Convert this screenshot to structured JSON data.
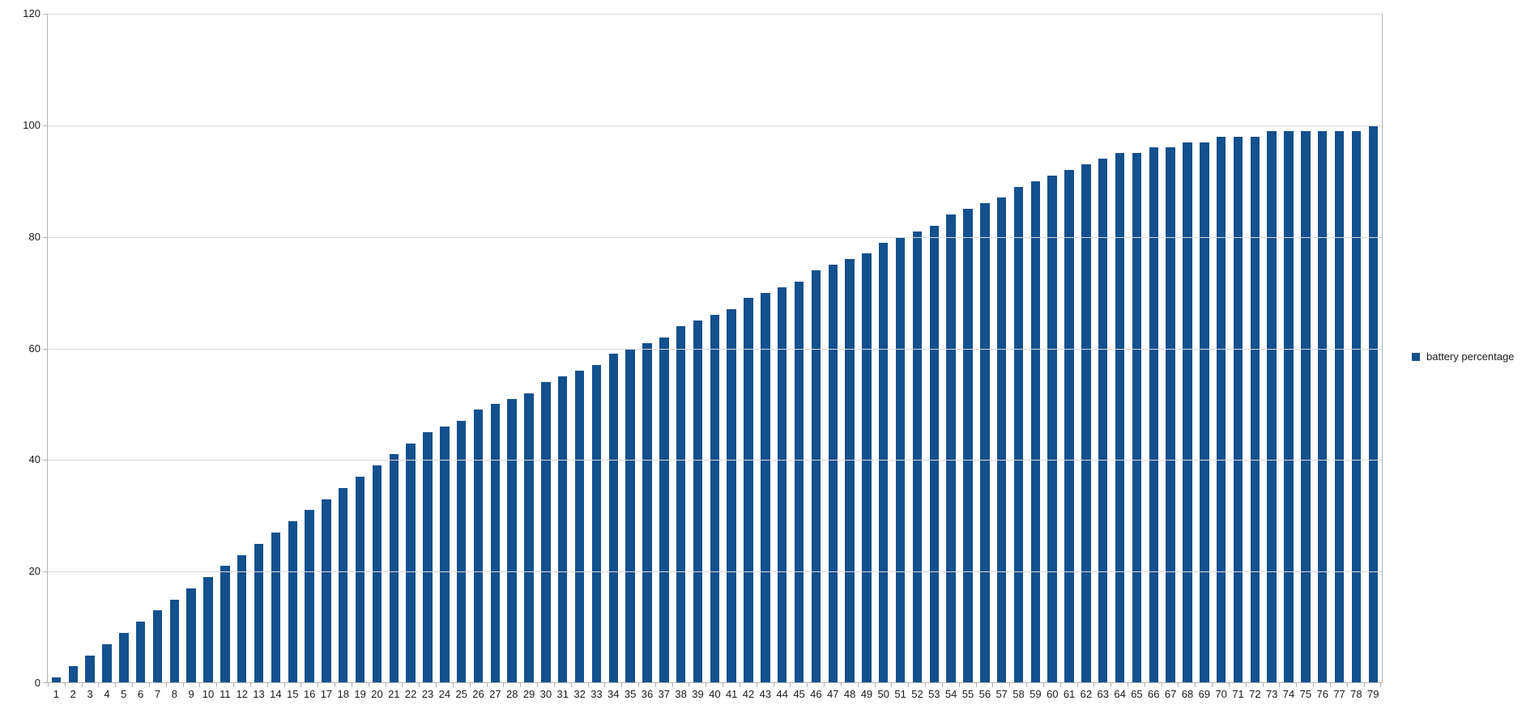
{
  "chart_data": {
    "type": "bar",
    "title": "",
    "xlabel": "",
    "ylabel": "",
    "categories": [
      "1",
      "2",
      "3",
      "4",
      "5",
      "6",
      "7",
      "8",
      "9",
      "10",
      "11",
      "12",
      "13",
      "14",
      "15",
      "16",
      "17",
      "18",
      "19",
      "20",
      "21",
      "22",
      "23",
      "24",
      "25",
      "26",
      "27",
      "28",
      "29",
      "30",
      "31",
      "32",
      "33",
      "34",
      "35",
      "36",
      "37",
      "38",
      "39",
      "40",
      "41",
      "42",
      "43",
      "44",
      "45",
      "46",
      "47",
      "48",
      "49",
      "50",
      "51",
      "52",
      "53",
      "54",
      "55",
      "56",
      "57",
      "58",
      "59",
      "60",
      "61",
      "62",
      "63",
      "64",
      "65",
      "66",
      "67",
      "68",
      "69",
      "70",
      "71",
      "72",
      "73",
      "74",
      "75",
      "76",
      "77",
      "78",
      "79"
    ],
    "series": [
      {
        "name": "battery percentage",
        "values": [
          1,
          3,
          5,
          7,
          9,
          11,
          13,
          15,
          17,
          19,
          21,
          23,
          25,
          27,
          29,
          31,
          33,
          35,
          37,
          39,
          41,
          43,
          45,
          46,
          47,
          49,
          50,
          51,
          52,
          54,
          55,
          56,
          57,
          59,
          60,
          61,
          62,
          64,
          65,
          66,
          67,
          69,
          70,
          71,
          72,
          74,
          75,
          76,
          77,
          79,
          80,
          81,
          82,
          84,
          85,
          86,
          87,
          89,
          90,
          91,
          92,
          93,
          94,
          95,
          95,
          96,
          96,
          97,
          97,
          98,
          98,
          98,
          99,
          99,
          99,
          99,
          99,
          99,
          100
        ]
      }
    ],
    "ylim": [
      0,
      120
    ],
    "yticks": [
      0,
      20,
      40,
      60,
      80,
      100,
      120
    ],
    "grid": true,
    "legend_position": "right"
  },
  "legend": {
    "label": "battery percentage"
  },
  "colors": {
    "bar": "#14508E",
    "gridline": "#d9d9d9",
    "axis": "#b3b3b3",
    "text": "#1a1a1a"
  }
}
